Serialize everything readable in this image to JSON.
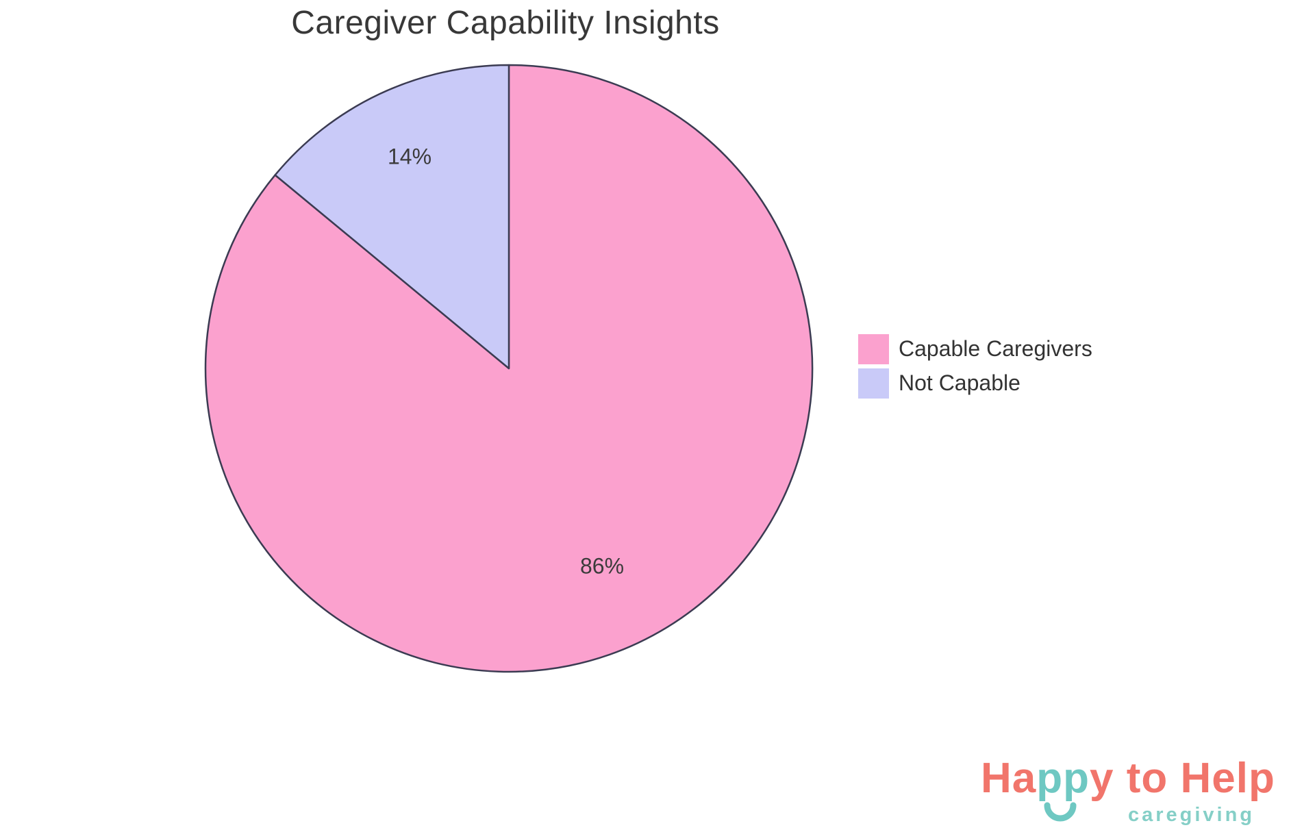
{
  "title": "Caregiver Capability Insights",
  "chart_data": {
    "type": "pie",
    "title": "Caregiver Capability Insights",
    "labels": [
      "Capable Caregivers",
      "Not Capable"
    ],
    "values": [
      86,
      14
    ],
    "display_percents": [
      "86%",
      "14%"
    ],
    "colors": [
      "#FBA1CE",
      "#C9CAF8"
    ],
    "border_color": "#3B3B52",
    "label_text_color": "#3B3B3B",
    "start_angle_deg": 90,
    "direction": "clockwise",
    "legend_position": "right"
  },
  "logo": {
    "word_part_1": "Ha",
    "word_part_2": "pp",
    "word_part_3": "y to Help",
    "subtitle": "caregiving",
    "coral_color": "#F1756B",
    "teal_color": "#6EC8C2",
    "subtitle_color": "#85CFC7"
  }
}
